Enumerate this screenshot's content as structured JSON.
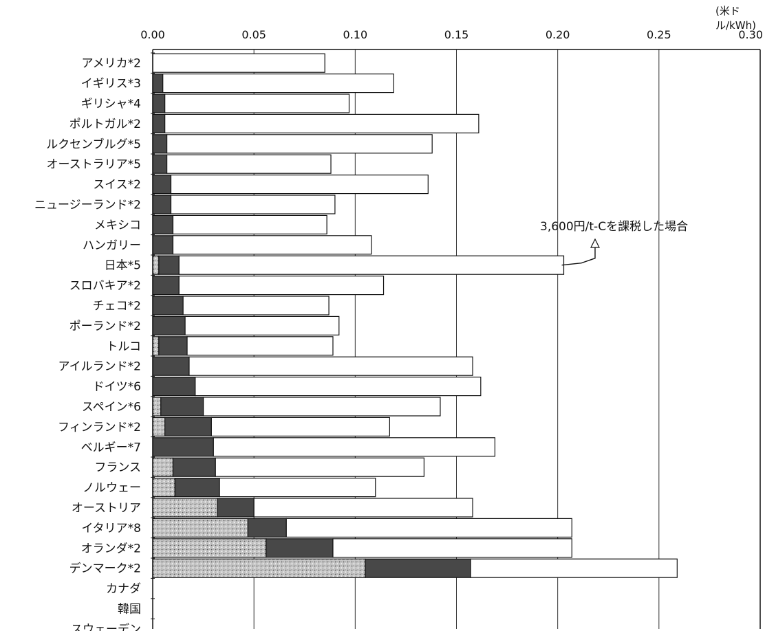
{
  "chart_data": {
    "type": "bar",
    "orientation": "horizontal",
    "stacked": true,
    "unit_label": "(米ドル/kWh)",
    "x_ticks": [
      "0.00",
      "0.05",
      "0.10",
      "0.15",
      "0.20",
      "0.25",
      "0.30"
    ],
    "xlim": [
      0,
      0.3
    ],
    "grid": true,
    "categories": [
      "アメリカ*2",
      "イギリス*3",
      "ギリシャ*4",
      "ポルトガル*2",
      "ルクセンブルグ*5",
      "オーストラリア*5",
      "スイス*2",
      "ニュージーランド*2",
      "メキシコ",
      "ハンガリー",
      "日本*5",
      "スロバキア*2",
      "チェコ*2",
      "ポーランド*2",
      "トルコ",
      "アイルランド*2",
      "ドイツ*6",
      "スペイン*6",
      "フィンランド*2",
      "ベルギー*7",
      "フランス",
      "ノルウェー",
      "オーストリア",
      "イタリア*8",
      "オランダ*2",
      "デンマーク*2",
      "カナダ",
      "韓国",
      "スウェーデン"
    ],
    "series": [
      {
        "fill": "dotted",
        "values": [
          0,
          0,
          0,
          0,
          0,
          0,
          0,
          0,
          0,
          0,
          0.003,
          0,
          0,
          0,
          0.003,
          0,
          0,
          0.004,
          0.006,
          0,
          0.01,
          0.011,
          0.032,
          0.047,
          0.056,
          0.105,
          0,
          0,
          0
        ]
      },
      {
        "fill": "dark",
        "values": [
          0,
          0.005,
          0.006,
          0.006,
          0.007,
          0.007,
          0.009,
          0.009,
          0.01,
          0.01,
          0.01,
          0.013,
          0.015,
          0.016,
          0.014,
          0.018,
          0.021,
          0.021,
          0.023,
          0.03,
          0.021,
          0.022,
          0.018,
          0.019,
          0.033,
          0.052,
          0,
          0,
          0
        ]
      },
      {
        "fill": "white",
        "values": [
          0.085,
          0.114,
          0.091,
          0.155,
          0.131,
          0.081,
          0.127,
          0.081,
          0.076,
          0.098,
          0.19,
          0.101,
          0.072,
          0.076,
          0.072,
          0.14,
          0.141,
          0.117,
          0.088,
          0.139,
          0.103,
          0.077,
          0.108,
          0.141,
          0.118,
          0.102,
          0,
          0,
          0
        ]
      }
    ],
    "annotation": {
      "text": "3,600円/t-Cを課税した場合",
      "category": "日本*5",
      "value": 0.202
    }
  }
}
